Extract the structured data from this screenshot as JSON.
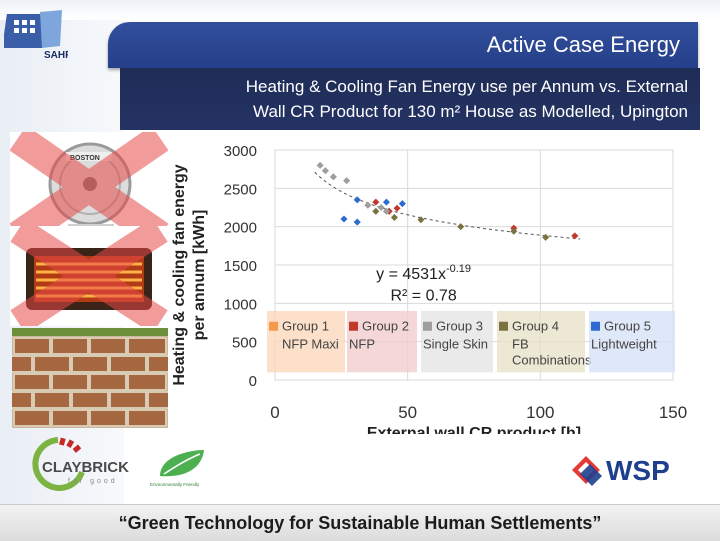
{
  "header": {
    "title": "Active Case Energy"
  },
  "subtitle": {
    "line1": "Heating & Cooling Fan Energy use per Annum vs. External",
    "line2": "Wall CR Product for 130 m² House as Modelled, Upington"
  },
  "logos": {
    "sahf": "SAHF",
    "claybrick": "CLAYBRICK",
    "claybrick_sub": "for good",
    "eco": "Environmentally Friendly",
    "wsp": "WSP"
  },
  "photos": {
    "fan_brand": "BOSTON"
  },
  "footer": {
    "tagline": "“Green Technology for Sustainable Human Settlements”"
  },
  "colors": {
    "header_blue": "#2c4794",
    "group1": "#f59a4a",
    "group2": "#c0392b",
    "group3": "#9e9e9e",
    "group4": "#7a7341",
    "group5": "#2e6bd1"
  },
  "chart_data": {
    "type": "scatter",
    "xlabel": "External wall CR product [h]",
    "ylabel_line1": "Heating & cooling fan energy",
    "ylabel_line2": "per annum [kWh]",
    "xlim": [
      0,
      150
    ],
    "ylim": [
      0,
      3000
    ],
    "x_ticks": [
      "0",
      "50",
      "100",
      "150"
    ],
    "y_ticks": [
      "0",
      "500",
      "1000",
      "1500",
      "2000",
      "2500",
      "3000"
    ],
    "grid": true,
    "trendline": {
      "equation": "y = 4531x",
      "exponent": "-0.19",
      "r2": "R² = 0.78",
      "a": 4531,
      "b": -0.19
    },
    "series": [
      {
        "group": "Group 1",
        "desc": "NFP Maxi",
        "color": "#f59a4a",
        "points": []
      },
      {
        "group": "Group 2",
        "desc": "NFP",
        "color": "#c0392b",
        "points": [
          [
            38,
            2320
          ],
          [
            43,
            2200
          ],
          [
            46,
            2240
          ],
          [
            90,
            1980
          ],
          [
            113,
            1880
          ]
        ]
      },
      {
        "group": "Group 3",
        "desc": "Single Skin",
        "color": "#9e9e9e",
        "points": [
          [
            17,
            2800
          ],
          [
            19,
            2730
          ],
          [
            22,
            2650
          ],
          [
            27,
            2600
          ],
          [
            35,
            2280
          ],
          [
            40,
            2250
          ],
          [
            42,
            2200
          ]
        ]
      },
      {
        "group": "Group 4",
        "desc": "FB Combinations",
        "color": "#7a7341",
        "points": [
          [
            38,
            2200
          ],
          [
            45,
            2120
          ],
          [
            55,
            2090
          ],
          [
            70,
            2000
          ],
          [
            90,
            1940
          ],
          [
            102,
            1860
          ]
        ]
      },
      {
        "group": "Group 5",
        "desc": "Lightweight",
        "color": "#2e6bd1",
        "points": [
          [
            26,
            2100
          ],
          [
            31,
            2060
          ],
          [
            31,
            2350
          ],
          [
            42,
            2320
          ],
          [
            48,
            2300
          ]
        ]
      }
    ]
  }
}
